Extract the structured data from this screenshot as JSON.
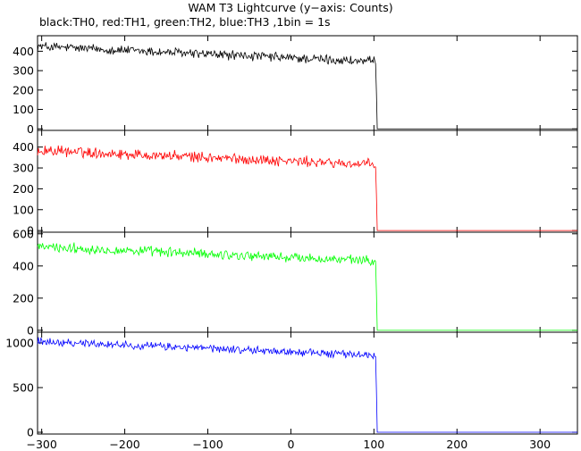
{
  "chart_data": {
    "type": "line",
    "title": "WAM T3 Lightcurve (y−axis: Counts)",
    "subtitle": "black:TH0, red:TH1, green:TH2, blue:TH3 ,1bin = 1s",
    "x_range": [
      -305,
      345
    ],
    "x_ticks": [
      -300,
      -200,
      -100,
      0,
      100,
      200,
      300
    ],
    "x_tick_labels": [
      "−300",
      "−200",
      "−100",
      "0",
      "100",
      "200",
      "300"
    ],
    "grid": false,
    "shared_x": {
      "start": -305,
      "end": 345,
      "step": 1
    },
    "series": [
      {
        "color": "#000000",
        "y_range": [
          -8,
          480
        ],
        "y_ticks": [
          0,
          100,
          200,
          300,
          400
        ],
        "y_tick_labels": [
          "0",
          "100",
          "200",
          "300",
          "400"
        ],
        "pre_burst_start_counts": 425,
        "pre_burst_end_counts": 345,
        "noise_amplitude": 20,
        "drop_time": 103,
        "post_drop_counts": 0
      },
      {
        "color": "#ff0000",
        "y_range": [
          -8,
          480
        ],
        "y_ticks": [
          0,
          100,
          200,
          300,
          400
        ],
        "y_tick_labels": [
          "0",
          "100",
          "200",
          "300",
          "400"
        ],
        "pre_burst_start_counts": 385,
        "pre_burst_end_counts": 315,
        "noise_amplitude": 20,
        "drop_time": 103,
        "post_drop_counts": 0
      },
      {
        "color": "#00ff00",
        "y_range": [
          -12,
          610
        ],
        "y_ticks": [
          0,
          200,
          400,
          600
        ],
        "y_tick_labels": [
          "0",
          "200",
          "400",
          "600"
        ],
        "pre_burst_start_counts": 520,
        "pre_burst_end_counts": 430,
        "noise_amplitude": 25,
        "drop_time": 103,
        "post_drop_counts": 0
      },
      {
        "color": "#0000ff",
        "y_range": [
          -20,
          1120
        ],
        "y_ticks": [
          0,
          500,
          1000
        ],
        "y_tick_labels": [
          "0",
          "500",
          "1000"
        ],
        "pre_burst_start_counts": 1020,
        "pre_burst_end_counts": 860,
        "noise_amplitude": 35,
        "drop_time": 103,
        "post_drop_counts": 0
      }
    ]
  }
}
